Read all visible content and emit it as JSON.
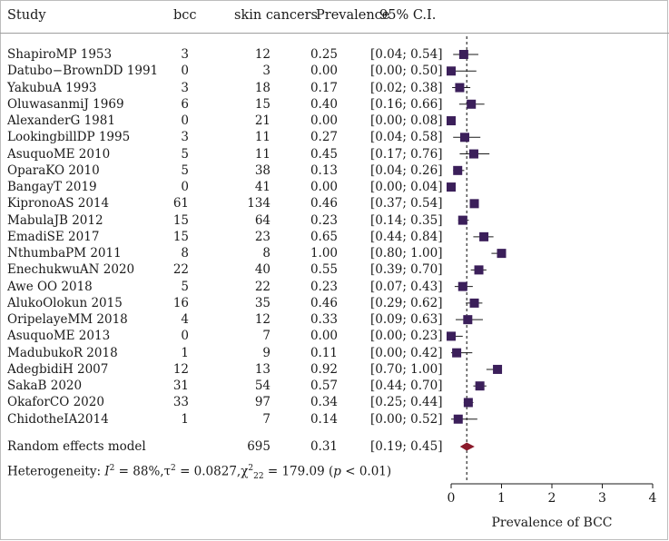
{
  "headers": {
    "study": "Study",
    "events": "bcc",
    "total": "skin cancers",
    "prev": "Prevalence",
    "ci": "95% C.I."
  },
  "rows": [
    {
      "study": "ShapiroMP 1953",
      "events": "3",
      "total": "12",
      "prev": "0.25",
      "ci": "[0.04; 0.54]"
    },
    {
      "study": "Datubo−BrownDD 1991",
      "events": "0",
      "total": "3",
      "prev": "0.00",
      "ci": "[0.00; 0.50]"
    },
    {
      "study": "YakubuA 1993",
      "events": "3",
      "total": "18",
      "prev": "0.17",
      "ci": "[0.02; 0.38]"
    },
    {
      "study": "OluwasanmiJ 1969",
      "events": "6",
      "total": "15",
      "prev": "0.40",
      "ci": "[0.16; 0.66]"
    },
    {
      "study": "AlexanderG 1981",
      "events": "0",
      "total": "21",
      "prev": "0.00",
      "ci": "[0.00; 0.08]"
    },
    {
      "study": "LookingbillDP 1995",
      "events": "3",
      "total": "11",
      "prev": "0.27",
      "ci": "[0.04; 0.58]"
    },
    {
      "study": "AsuquoME 2010",
      "events": "5",
      "total": "11",
      "prev": "0.45",
      "ci": "[0.17; 0.76]"
    },
    {
      "study": "OparaKO 2010",
      "events": "5",
      "total": "38",
      "prev": "0.13",
      "ci": "[0.04; 0.26]"
    },
    {
      "study": "BangayT 2019",
      "events": "0",
      "total": "41",
      "prev": "0.00",
      "ci": "[0.00; 0.04]"
    },
    {
      "study": "KipronoAS 2014",
      "events": "61",
      "total": "134",
      "prev": "0.46",
      "ci": "[0.37; 0.54]"
    },
    {
      "study": "MabulaJB 2012",
      "events": "15",
      "total": "64",
      "prev": "0.23",
      "ci": "[0.14; 0.35]"
    },
    {
      "study": "EmadiSE 2017",
      "events": "15",
      "total": "23",
      "prev": "0.65",
      "ci": "[0.44; 0.84]"
    },
    {
      "study": "NthumbaPM 2011",
      "events": "8",
      "total": "8",
      "prev": "1.00",
      "ci": "[0.80; 1.00]"
    },
    {
      "study": "EnechukwuAN 2020",
      "events": "22",
      "total": "40",
      "prev": "0.55",
      "ci": "[0.39; 0.70]"
    },
    {
      "study": "Awe OO 2018",
      "events": "5",
      "total": "22",
      "prev": "0.23",
      "ci": "[0.07; 0.43]"
    },
    {
      "study": "AlukoOlokun 2015",
      "events": "16",
      "total": "35",
      "prev": "0.46",
      "ci": "[0.29; 0.62]"
    },
    {
      "study": "OripelayeMM 2018",
      "events": "4",
      "total": "12",
      "prev": "0.33",
      "ci": "[0.09; 0.63]"
    },
    {
      "study": "AsuquoME 2013",
      "events": "0",
      "total": "7",
      "prev": "0.00",
      "ci": "[0.00; 0.23]"
    },
    {
      "study": "MadubukoR 2018",
      "events": "1",
      "total": "9",
      "prev": "0.11",
      "ci": "[0.00; 0.42]"
    },
    {
      "study": "AdegbidiH 2007",
      "events": "12",
      "total": "13",
      "prev": "0.92",
      "ci": "[0.70; 1.00]"
    },
    {
      "study": "SakaB 2020",
      "events": "31",
      "total": "54",
      "prev": "0.57",
      "ci": "[0.44; 0.70]"
    },
    {
      "study": "OkaforCO 2020",
      "events": "33",
      "total": "97",
      "prev": "0.34",
      "ci": "[0.25; 0.44]"
    },
    {
      "study": "ChidotheIA2014",
      "events": "1",
      "total": "7",
      "prev": "0.14",
      "ci": "[0.00; 0.52]"
    }
  ],
  "summary": {
    "label": "Random effects model",
    "total": "695",
    "prev": "0.31",
    "ci": "[0.19; 0.45]"
  },
  "heterogeneity": {
    "prefix": "Heterogeneity: ",
    "i2_symbol": "I",
    "i2_value": " = 88%,τ",
    "tau2_value": " = 0.0827,χ",
    "chi2_df": "22",
    "chi2_value": " = 179.09 (",
    "p_symbol": "p",
    "p_value": " < 0.01)"
  },
  "colors": {
    "square": "#3b1f5a",
    "diamond": "#8b1a2b",
    "line": "#1a1a1a",
    "dashed": "#1a1a1a"
  },
  "chart_data": {
    "type": "forest",
    "xlabel": "Prevalence of BCC",
    "xlim": [
      0,
      4
    ],
    "xticks": [
      0,
      1,
      2,
      3,
      4
    ],
    "reference_line": 0.31,
    "studies": [
      {
        "name": "ShapiroMP 1953",
        "estimate": 0.25,
        "lower": 0.04,
        "upper": 0.54
      },
      {
        "name": "Datubo−BrownDD 1991",
        "estimate": 0.0,
        "lower": 0.0,
        "upper": 0.5
      },
      {
        "name": "YakubuA 1993",
        "estimate": 0.17,
        "lower": 0.02,
        "upper": 0.38
      },
      {
        "name": "OluwasanmiJ 1969",
        "estimate": 0.4,
        "lower": 0.16,
        "upper": 0.66
      },
      {
        "name": "AlexanderG 1981",
        "estimate": 0.0,
        "lower": 0.0,
        "upper": 0.08
      },
      {
        "name": "LookingbillDP 1995",
        "estimate": 0.27,
        "lower": 0.04,
        "upper": 0.58
      },
      {
        "name": "AsuquoME 2010",
        "estimate": 0.45,
        "lower": 0.17,
        "upper": 0.76
      },
      {
        "name": "OparaKO 2010",
        "estimate": 0.13,
        "lower": 0.04,
        "upper": 0.26
      },
      {
        "name": "BangayT 2019",
        "estimate": 0.0,
        "lower": 0.0,
        "upper": 0.04
      },
      {
        "name": "KipronoAS 2014",
        "estimate": 0.46,
        "lower": 0.37,
        "upper": 0.54
      },
      {
        "name": "MabulaJB 2012",
        "estimate": 0.23,
        "lower": 0.14,
        "upper": 0.35
      },
      {
        "name": "EmadiSE 2017",
        "estimate": 0.65,
        "lower": 0.44,
        "upper": 0.84
      },
      {
        "name": "NthumbaPM 2011",
        "estimate": 1.0,
        "lower": 0.8,
        "upper": 1.0
      },
      {
        "name": "EnechukwuAN 2020",
        "estimate": 0.55,
        "lower": 0.39,
        "upper": 0.7
      },
      {
        "name": "Awe OO 2018",
        "estimate": 0.23,
        "lower": 0.07,
        "upper": 0.43
      },
      {
        "name": "AlukoOlokun 2015",
        "estimate": 0.46,
        "lower": 0.29,
        "upper": 0.62
      },
      {
        "name": "OripelayeMM 2018",
        "estimate": 0.33,
        "lower": 0.09,
        "upper": 0.63
      },
      {
        "name": "AsuquoME 2013",
        "estimate": 0.0,
        "lower": 0.0,
        "upper": 0.23
      },
      {
        "name": "MadubukoR 2018",
        "estimate": 0.11,
        "lower": 0.0,
        "upper": 0.42
      },
      {
        "name": "AdegbidiH 2007",
        "estimate": 0.92,
        "lower": 0.7,
        "upper": 1.0
      },
      {
        "name": "SakaB 2020",
        "estimate": 0.57,
        "lower": 0.44,
        "upper": 0.7
      },
      {
        "name": "OkaforCO 2020",
        "estimate": 0.34,
        "lower": 0.25,
        "upper": 0.44
      },
      {
        "name": "ChidotheIA2014",
        "estimate": 0.14,
        "lower": 0.0,
        "upper": 0.52
      }
    ],
    "pooled": {
      "name": "Random effects model",
      "estimate": 0.31,
      "lower": 0.19,
      "upper": 0.45
    }
  }
}
